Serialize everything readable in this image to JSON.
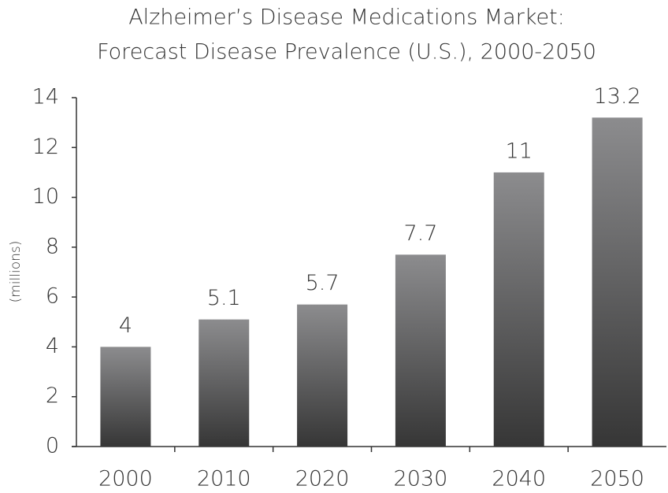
{
  "chart_data": {
    "type": "bar",
    "title": [
      "Alzheimer’s Disease Medications Market:",
      "Forecast Disease Prevalence (U.S.), 2000-2050"
    ],
    "y_label": "(millions)",
    "categories": [
      "2000",
      "2010",
      "2020",
      "2030",
      "2040",
      "2050"
    ],
    "values": [
      4,
      5.1,
      5.7,
      7.7,
      11,
      13.2
    ],
    "color": [
      "#8c8c8e",
      "#363636"
    ],
    "ylim": [
      0,
      14
    ],
    "yticks": [
      0,
      2,
      4,
      6,
      8,
      10,
      12,
      14
    ],
    "grid": false
  }
}
